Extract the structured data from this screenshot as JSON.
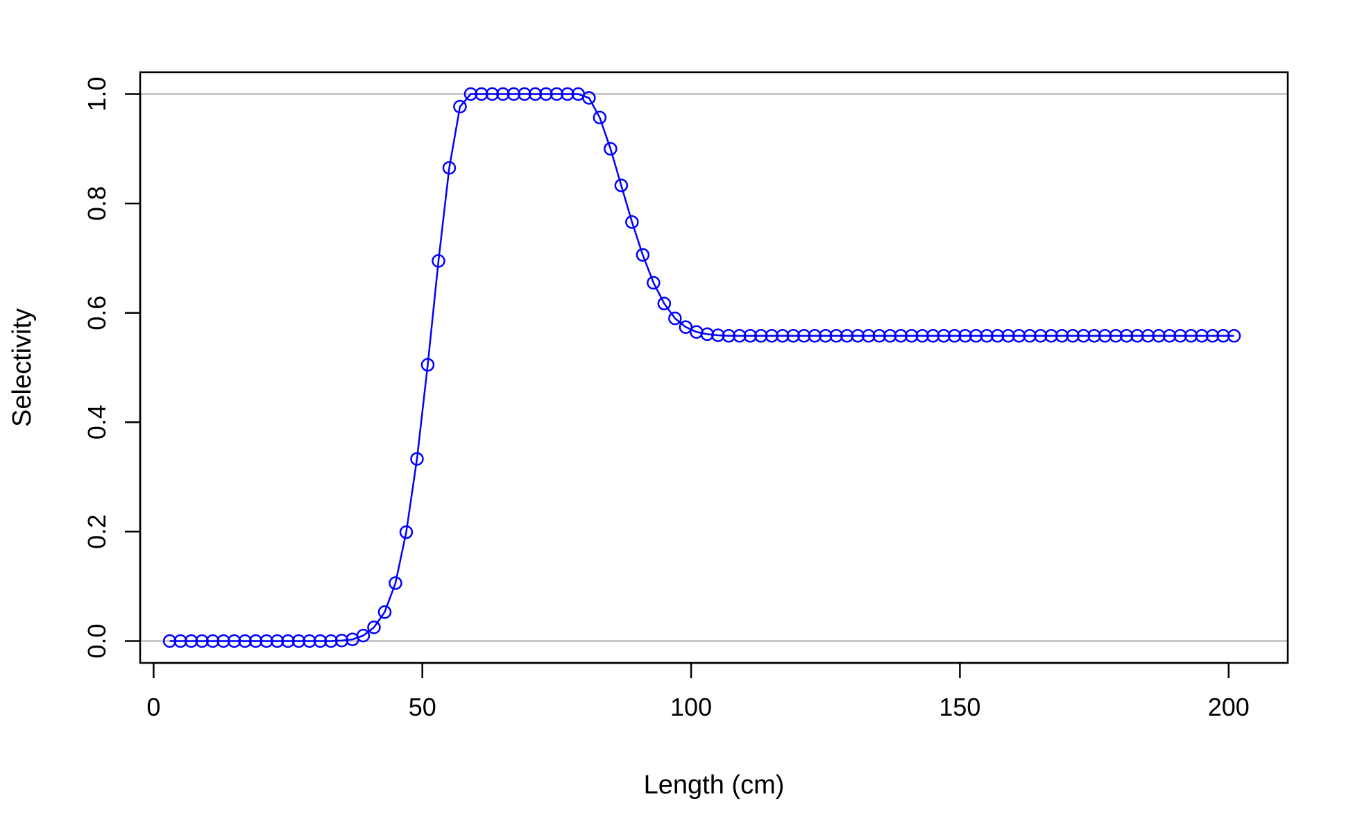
{
  "chart_data": {
    "type": "line",
    "title": "",
    "xlabel": "Length (cm)",
    "ylabel": "Selectivity",
    "xlim": [
      -2.5,
      211
    ],
    "ylim": [
      -0.04,
      1.04
    ],
    "x_ticks": [
      0,
      50,
      100,
      150,
      200
    ],
    "x_tick_labels": [
      "0",
      "50",
      "100",
      "150",
      "200"
    ],
    "y_ticks": [
      0.0,
      0.2,
      0.4,
      0.6,
      0.8,
      1.0
    ],
    "y_tick_labels": [
      "0.0",
      "0.2",
      "0.4",
      "0.6",
      "0.8",
      "1.0"
    ],
    "reference_lines_y": [
      0,
      1
    ],
    "grid": false,
    "legend": "none",
    "series": [
      {
        "color": "#0000ff",
        "marker": "open-circle",
        "x": [
          3,
          5,
          7,
          9,
          11,
          13,
          15,
          17,
          19,
          21,
          23,
          25,
          27,
          29,
          31,
          33,
          35,
          37,
          39,
          41,
          43,
          45,
          47,
          49,
          51,
          53,
          55,
          57,
          59,
          61,
          63,
          65,
          67,
          69,
          71,
          73,
          75,
          77,
          79,
          81,
          83,
          85,
          87,
          89,
          91,
          93,
          95,
          97,
          99,
          101,
          103,
          105,
          107,
          109,
          111,
          113,
          115,
          117,
          119,
          121,
          123,
          125,
          127,
          129,
          131,
          133,
          135,
          137,
          139,
          141,
          143,
          145,
          147,
          149,
          151,
          153,
          155,
          157,
          159,
          161,
          163,
          165,
          167,
          169,
          171,
          173,
          175,
          177,
          179,
          181,
          183,
          185,
          187,
          189,
          191,
          193,
          195,
          197,
          199,
          201
        ],
        "y": [
          0,
          0,
          0,
          0,
          0,
          0,
          0,
          0,
          0,
          0,
          0,
          0,
          0,
          0,
          0,
          0,
          0.001,
          0.003,
          0.01,
          0.025,
          0.053,
          0.106,
          0.199,
          0.333,
          0.505,
          0.695,
          0.865,
          0.977,
          1,
          1,
          1,
          1,
          1,
          1,
          1,
          1,
          1,
          1,
          1,
          0.993,
          0.957,
          0.9,
          0.833,
          0.766,
          0.706,
          0.655,
          0.617,
          0.59,
          0.574,
          0.565,
          0.561,
          0.559,
          0.558,
          0.558,
          0.558,
          0.558,
          0.558,
          0.558,
          0.558,
          0.558,
          0.558,
          0.558,
          0.558,
          0.558,
          0.558,
          0.558,
          0.558,
          0.558,
          0.558,
          0.558,
          0.558,
          0.558,
          0.558,
          0.558,
          0.558,
          0.558,
          0.558,
          0.558,
          0.558,
          0.558,
          0.558,
          0.558,
          0.558,
          0.558,
          0.558,
          0.558,
          0.558,
          0.558,
          0.558,
          0.558,
          0.558,
          0.558,
          0.558,
          0.558,
          0.558,
          0.558,
          0.558,
          0.558,
          0.558,
          0.558
        ]
      }
    ]
  }
}
